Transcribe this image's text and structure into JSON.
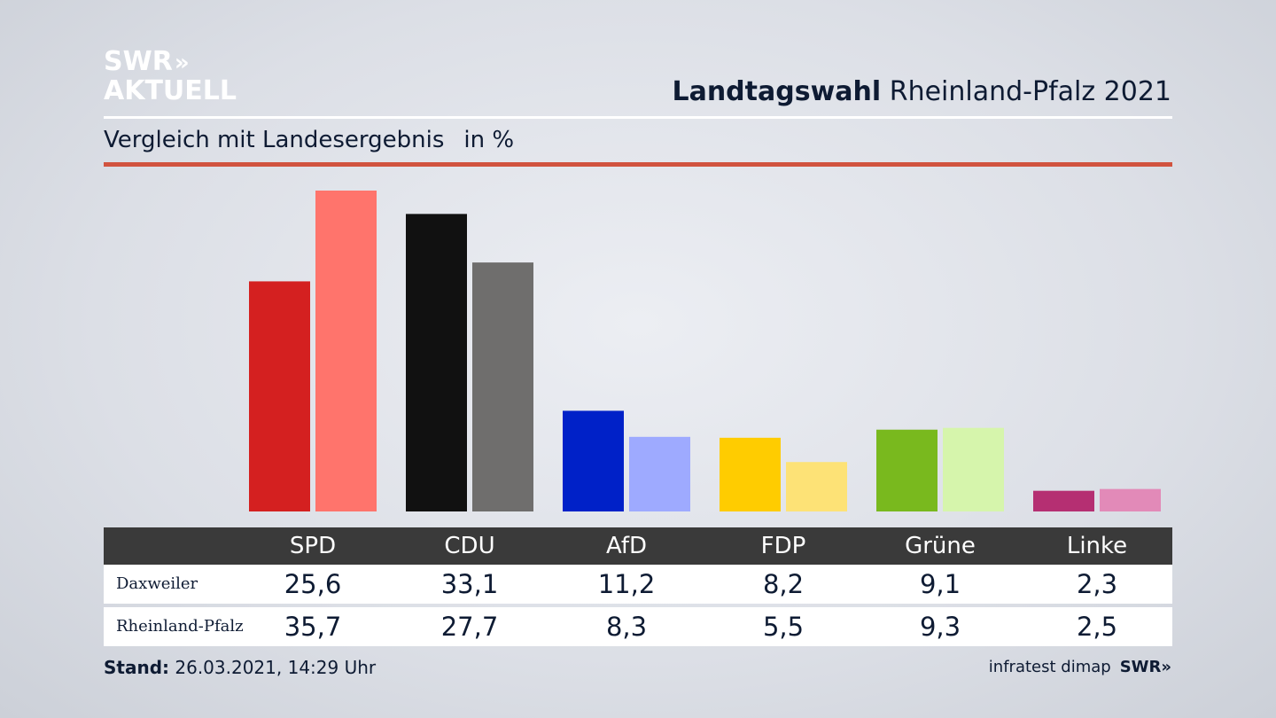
{
  "logo": {
    "line1": "SWR",
    "line2": "AKTUELL",
    "arrows": "»"
  },
  "header": {
    "title_bold": "Landtagswahl",
    "title_rest": " Rheinland-Pfalz 2021",
    "subtitle": "Vergleich mit Landesergebnis",
    "unit": "in %"
  },
  "chart_data": {
    "type": "bar",
    "title": "Landtagswahl Rheinland-Pfalz 2021",
    "subtitle": "Vergleich mit Landesergebnis",
    "unit": "in %",
    "categories": [
      "SPD",
      "CDU",
      "AfD",
      "FDP",
      "Grüne",
      "Linke"
    ],
    "series": [
      {
        "name": "Daxweiler",
        "values": [
          25.6,
          33.1,
          11.2,
          8.2,
          9.1,
          2.3
        ],
        "labels": [
          "25,6",
          "33,1",
          "11,2",
          "8,2",
          "9,1",
          "2,3"
        ],
        "colors": [
          "#d42020",
          "#111111",
          "#0021c8",
          "#ffcc00",
          "#79b91e",
          "#b52f72"
        ]
      },
      {
        "name": "Rheinland-Pfalz",
        "values": [
          35.7,
          27.7,
          8.3,
          5.5,
          9.3,
          2.5
        ],
        "labels": [
          "35,7",
          "27,7",
          "8,3",
          "5,5",
          "9,3",
          "2,5"
        ],
        "colors": [
          "#ff746c",
          "#6f6e6d",
          "#9eaaff",
          "#fde276",
          "#d6f5ac",
          "#e28ab8"
        ]
      }
    ],
    "ylim": [
      0,
      36
    ],
    "grid": false
  },
  "table": {
    "row_labels": [
      "Daxweiler",
      "Rheinland-Pfalz"
    ]
  },
  "footer": {
    "stand_label": "Stand:",
    "stand_value": " 26.03.2021, 14:29 Uhr",
    "source": "infratest dimap",
    "brand": "SWR»"
  }
}
